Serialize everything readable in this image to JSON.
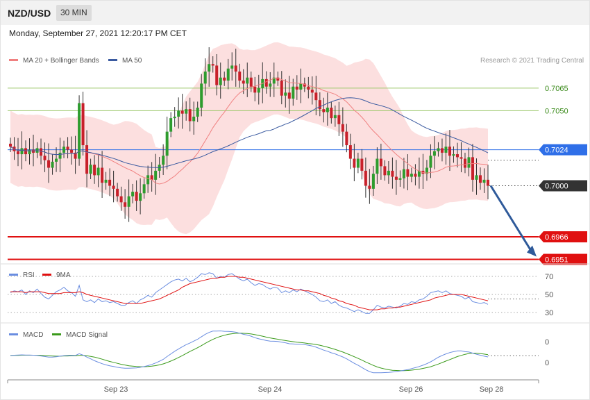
{
  "header": {
    "symbol": "NZD/USD",
    "timeframe": "30 MIN"
  },
  "datetime": "Monday, September 27, 2021 12:20:17 PM CET",
  "copyright": "Research © 2021 Trading Central",
  "colors": {
    "up": "#2e9c2e",
    "down": "#c8202a",
    "bb_fill": "#fcd9d9",
    "ma20": "#f08080",
    "ma50": "#3a5aa0",
    "rsi": "#6a8de0",
    "rsi_ma": "#e01010",
    "macd": "#6a8de0",
    "macd_signal": "#3a9a1a",
    "resistance": "#9cc76a",
    "support": "#e01010",
    "pivot": "#2f6fe8",
    "arrow": "#2f5a9a"
  },
  "chart_data": [
    {
      "type": "candlestick",
      "legend": [
        {
          "name": "MA 20 + Bollinger Bands",
          "color": "#f08080"
        },
        {
          "name": "MA 50",
          "color": "#3a5aa0"
        }
      ],
      "x_ticks": [
        "Sep 23",
        "Sep 24",
        "Sep 26",
        "Sep 28"
      ],
      "ylim": [
        0.6948,
        0.7107
      ],
      "closes": [
        0.7026,
        0.7023,
        0.7021,
        0.7025,
        0.7021,
        0.7024,
        0.7022,
        0.7025,
        0.702,
        0.7017,
        0.7012,
        0.7016,
        0.7018,
        0.7022,
        0.7026,
        0.7024,
        0.7022,
        0.7018,
        0.7055,
        0.7027,
        0.7008,
        0.7014,
        0.7007,
        0.7012,
        0.7002,
        0.7004,
        0.7,
        0.6998,
        0.6993,
        0.6989,
        0.6986,
        0.6993,
        0.6996,
        0.699,
        0.6995,
        0.7001,
        0.7007,
        0.7004,
        0.701,
        0.7014,
        0.702,
        0.7036,
        0.7045,
        0.7046,
        0.705,
        0.7048,
        0.7051,
        0.7043,
        0.7046,
        0.7052,
        0.7068,
        0.7076,
        0.7081,
        0.708,
        0.7067,
        0.7072,
        0.707,
        0.7078,
        0.708,
        0.7076,
        0.707,
        0.7068,
        0.7072,
        0.7066,
        0.7062,
        0.7065,
        0.7071,
        0.7066,
        0.7068,
        0.7072,
        0.707,
        0.706,
        0.7062,
        0.7058,
        0.7066,
        0.7064,
        0.7068,
        0.7066,
        0.7064,
        0.7062,
        0.7057,
        0.7051,
        0.7049,
        0.7052,
        0.7045,
        0.7047,
        0.7041,
        0.7036,
        0.7027,
        0.7018,
        0.7012,
        0.7018,
        0.701,
        0.7,
        0.6998,
        0.7008,
        0.7018,
        0.7013,
        0.7007,
        0.701,
        0.7006,
        0.7004,
        0.7005,
        0.7011,
        0.7006,
        0.7008,
        0.7006,
        0.701,
        0.7008,
        0.7012,
        0.702,
        0.7023,
        0.7025,
        0.7022,
        0.7026,
        0.702,
        0.7021,
        0.7019,
        0.7018,
        0.7012,
        0.7019,
        0.7004,
        0.7007,
        0.7002,
        0.7004,
        0.7
      ],
      "levels": [
        {
          "label": "0.7065",
          "value": 0.7065,
          "kind": "resistance"
        },
        {
          "label": "0.7050",
          "value": 0.705,
          "kind": "resistance"
        },
        {
          "label": "0.7024",
          "value": 0.7024,
          "kind": "pivot"
        },
        {
          "label": "0.7000",
          "value": 0.7,
          "kind": "last"
        },
        {
          "label": "0.6966",
          "value": 0.6966,
          "kind": "support"
        },
        {
          "label": "0.6951",
          "value": 0.6951,
          "kind": "support"
        }
      ],
      "forecast_target": 0.6951
    },
    {
      "type": "line",
      "legend": [
        {
          "name": "RSI",
          "color": "#6a8de0"
        },
        {
          "name": "9MA",
          "color": "#e01010"
        }
      ],
      "y_ticks": [
        "70",
        "50",
        "30"
      ],
      "ylim": [
        20,
        80
      ],
      "series": [
        {
          "name": "RSI",
          "values": [
            52,
            54,
            53,
            55,
            50,
            54,
            52,
            56,
            51,
            47,
            45,
            49,
            53,
            55,
            58,
            54,
            52,
            48,
            60,
            44,
            42,
            44,
            41,
            45,
            42,
            43,
            41,
            42,
            40,
            38,
            38,
            41,
            43,
            40,
            44,
            46,
            49,
            47,
            52,
            55,
            58,
            61,
            64,
            66,
            67,
            65,
            68,
            64,
            66,
            69,
            73,
            72,
            74,
            73,
            68,
            70,
            69,
            72,
            73,
            70,
            67,
            65,
            67,
            63,
            60,
            62,
            61,
            58,
            56,
            58,
            57,
            52,
            54,
            52,
            55,
            53,
            56,
            54,
            52,
            50,
            47,
            43,
            42,
            44,
            40,
            42,
            38,
            36,
            35,
            33,
            31,
            33,
            31,
            29,
            29,
            33,
            38,
            36,
            35,
            37,
            36,
            35,
            37,
            40,
            39,
            42,
            41,
            44,
            45,
            48,
            52,
            53,
            54,
            52,
            54,
            51,
            50,
            49,
            48,
            45,
            47,
            42,
            41,
            40,
            41,
            39
          ]
        },
        {
          "name": "9MA",
          "values": [
            53,
            53,
            53,
            53,
            52,
            53,
            53,
            53,
            53,
            52,
            51,
            51,
            51,
            51,
            52,
            52,
            52,
            52,
            53,
            52,
            50,
            49,
            48,
            47,
            46,
            45,
            44,
            43,
            42,
            41,
            40,
            40,
            40,
            40,
            40,
            41,
            42,
            43,
            44,
            45,
            47,
            49,
            51,
            53,
            55,
            58,
            60,
            62,
            63,
            64,
            65,
            66,
            67,
            68,
            68,
            69,
            69,
            70,
            70,
            70,
            69,
            69,
            68,
            67,
            66,
            65,
            64,
            63,
            62,
            61,
            60,
            59,
            58,
            57,
            56,
            55,
            55,
            54,
            54,
            53,
            52,
            51,
            49,
            48,
            46,
            45,
            43,
            42,
            40,
            39,
            38,
            36,
            35,
            34,
            33,
            33,
            33,
            34,
            34,
            35,
            35,
            36,
            36,
            37,
            38,
            39,
            40,
            41,
            42,
            43,
            44,
            46,
            47,
            48,
            49,
            50,
            50,
            50,
            50,
            49,
            48,
            47,
            46,
            45,
            44,
            43
          ]
        }
      ]
    },
    {
      "type": "line",
      "legend": [
        {
          "name": "MACD",
          "color": "#6a8de0"
        },
        {
          "name": "MACD Signal",
          "color": "#3a9a1a"
        }
      ],
      "y_ticks": [
        "0",
        "0"
      ],
      "ylim": [
        -1.5,
        1.3
      ],
      "series": [
        {
          "name": "MACD",
          "values": [
            -0.25,
            -0.23,
            -0.22,
            -0.21,
            -0.22,
            -0.22,
            -0.23,
            -0.24,
            -0.27,
            -0.3,
            -0.33,
            -0.33,
            -0.31,
            -0.28,
            -0.25,
            -0.24,
            -0.23,
            -0.24,
            -0.15,
            -0.22,
            -0.33,
            -0.42,
            -0.52,
            -0.6,
            -0.68,
            -0.74,
            -0.79,
            -0.83,
            -0.87,
            -0.9,
            -0.92,
            -0.92,
            -0.91,
            -0.9,
            -0.87,
            -0.83,
            -0.78,
            -0.72,
            -0.64,
            -0.55,
            -0.45,
            -0.3,
            -0.16,
            -0.02,
            0.1,
            0.22,
            0.33,
            0.42,
            0.52,
            0.62,
            0.75,
            0.88,
            0.98,
            1.05,
            1.05,
            1.06,
            1.04,
            1.03,
            1.02,
            0.99,
            0.94,
            0.88,
            0.84,
            0.78,
            0.7,
            0.64,
            0.6,
            0.55,
            0.52,
            0.51,
            0.5,
            0.46,
            0.43,
            0.38,
            0.37,
            0.35,
            0.35,
            0.33,
            0.3,
            0.26,
            0.2,
            0.12,
            0.04,
            -0.02,
            -0.1,
            -0.16,
            -0.24,
            -0.32,
            -0.42,
            -0.54,
            -0.66,
            -0.76,
            -0.88,
            -1.0,
            -1.1,
            -1.16,
            -1.16,
            -1.16,
            -1.15,
            -1.14,
            -1.12,
            -1.1,
            -1.07,
            -1.03,
            -0.99,
            -0.94,
            -0.89,
            -0.83,
            -0.76,
            -0.68,
            -0.58,
            -0.46,
            -0.34,
            -0.24,
            -0.16,
            -0.09,
            -0.04,
            0.0,
            0.0,
            -0.04,
            -0.06,
            -0.12,
            -0.18,
            -0.23,
            -0.28,
            -0.32
          ]
        },
        {
          "name": "MACD Signal",
          "values": [
            -0.24,
            -0.24,
            -0.24,
            -0.23,
            -0.23,
            -0.23,
            -0.23,
            -0.23,
            -0.24,
            -0.25,
            -0.26,
            -0.27,
            -0.28,
            -0.28,
            -0.27,
            -0.27,
            -0.26,
            -0.26,
            -0.24,
            -0.24,
            -0.26,
            -0.29,
            -0.33,
            -0.38,
            -0.44,
            -0.5,
            -0.56,
            -0.61,
            -0.66,
            -0.71,
            -0.75,
            -0.79,
            -0.81,
            -0.83,
            -0.84,
            -0.84,
            -0.83,
            -0.81,
            -0.78,
            -0.74,
            -0.69,
            -0.62,
            -0.54,
            -0.45,
            -0.35,
            -0.25,
            -0.14,
            -0.03,
            0.07,
            0.17,
            0.28,
            0.4,
            0.51,
            0.61,
            0.7,
            0.77,
            0.83,
            0.88,
            0.91,
            0.93,
            0.94,
            0.93,
            0.92,
            0.9,
            0.86,
            0.82,
            0.78,
            0.73,
            0.69,
            0.65,
            0.62,
            0.58,
            0.55,
            0.52,
            0.49,
            0.46,
            0.44,
            0.42,
            0.39,
            0.37,
            0.34,
            0.3,
            0.25,
            0.2,
            0.14,
            0.08,
            0.01,
            -0.06,
            -0.14,
            -0.22,
            -0.31,
            -0.4,
            -0.49,
            -0.59,
            -0.68,
            -0.77,
            -0.85,
            -0.91,
            -0.96,
            -1.0,
            -1.03,
            -1.04,
            -1.05,
            -1.05,
            -1.04,
            -1.02,
            -1.0,
            -0.97,
            -0.93,
            -0.89,
            -0.84,
            -0.77,
            -0.7,
            -0.62,
            -0.54,
            -0.46,
            -0.38,
            -0.3,
            -0.24,
            -0.18,
            -0.14,
            -0.12,
            -0.12,
            -0.14,
            -0.17,
            -0.2
          ]
        }
      ]
    }
  ]
}
